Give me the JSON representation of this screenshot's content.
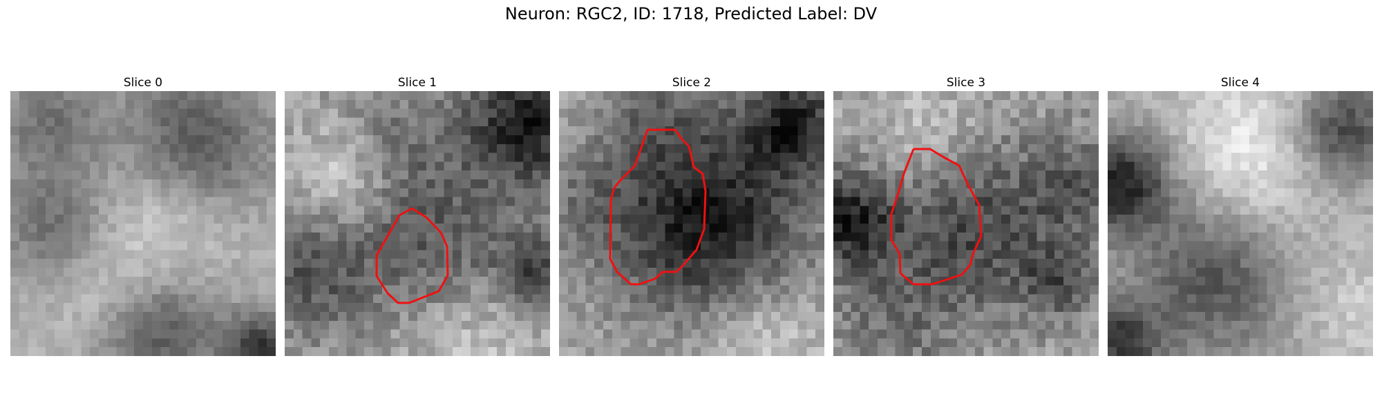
{
  "figure": {
    "title": "Neuron: RGC2, ID: 1718, Predicted Label: DV"
  },
  "slices": [
    {
      "title": "Slice 0",
      "has_contour": false
    },
    {
      "title": "Slice 1",
      "has_contour": true
    },
    {
      "title": "Slice 2",
      "has_contour": true
    },
    {
      "title": "Slice 3",
      "has_contour": true
    },
    {
      "title": "Slice 4",
      "has_contour": false
    }
  ],
  "colors": {
    "contour": "#ee1111",
    "background": "#ffffff"
  }
}
